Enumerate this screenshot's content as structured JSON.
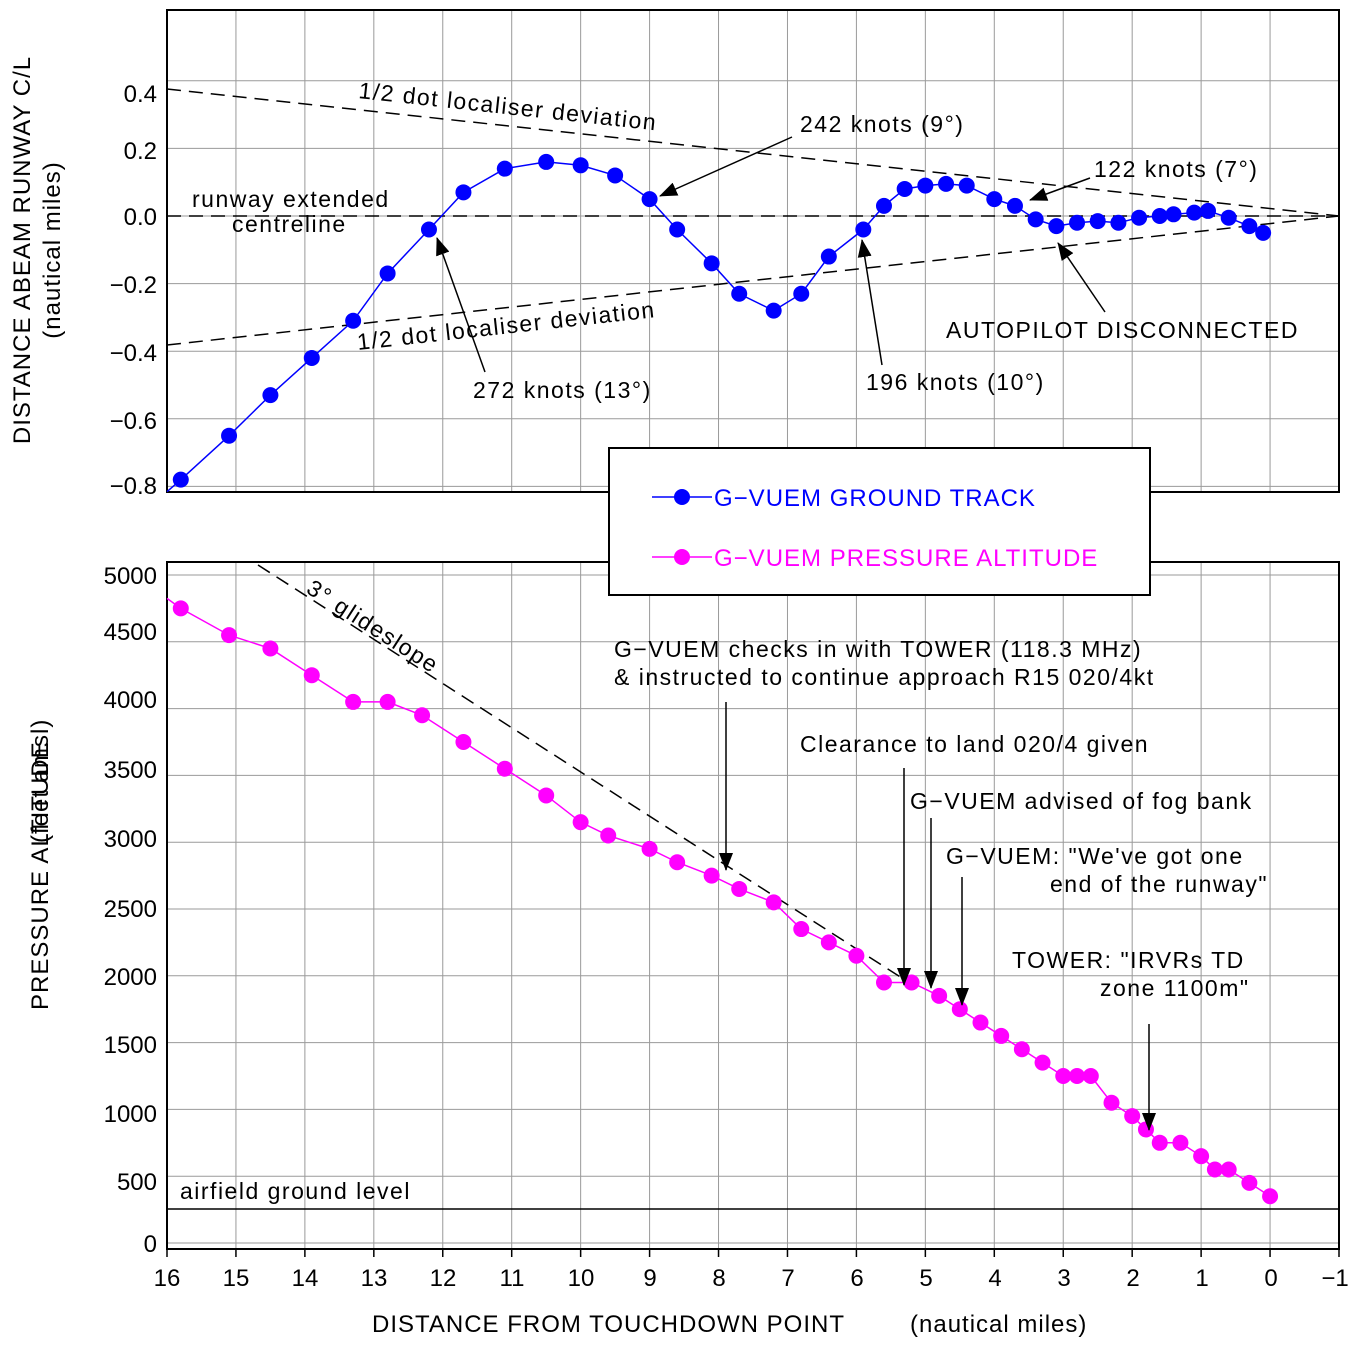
{
  "chart_data": [
    {
      "type": "line",
      "ylabel": "DISTANCE ABEAM RUNWAY C/L",
      "ylabel_sub": "(nautical miles)",
      "xlim": [
        16,
        -1
      ],
      "ylim": [
        -0.8,
        0.4
      ],
      "yticks": [
        "0.4",
        "0.2",
        "0.0",
        "−0.2",
        "−0.4",
        "−0.6",
        "−0.8"
      ],
      "grid": true,
      "series": [
        {
          "name": "G−VUEM GROUND TRACK",
          "color": "#0000ff",
          "x": [
            15.8,
            15.1,
            14.5,
            13.9,
            13.3,
            12.8,
            12.2,
            11.7,
            11.1,
            10.5,
            10.0,
            9.5,
            9.0,
            8.6,
            8.1,
            7.7,
            7.2,
            6.8,
            6.4,
            5.9,
            5.6,
            5.3,
            5.0,
            4.7,
            4.4,
            4.0,
            3.7,
            3.4,
            3.1,
            2.8,
            2.5,
            2.2,
            1.9,
            1.6,
            1.4,
            1.1,
            0.9,
            0.6,
            0.3,
            0.1
          ],
          "y": [
            -0.78,
            -0.65,
            -0.53,
            -0.42,
            -0.31,
            -0.17,
            -0.04,
            0.07,
            0.14,
            0.16,
            0.15,
            0.12,
            0.05,
            -0.04,
            -0.14,
            -0.23,
            -0.28,
            -0.23,
            -0.12,
            -0.04,
            0.03,
            0.08,
            0.09,
            0.095,
            0.09,
            0.05,
            0.03,
            -0.01,
            -0.03,
            -0.02,
            -0.015,
            -0.02,
            -0.005,
            0.0,
            0.005,
            0.01,
            0.015,
            -0.005,
            -0.03,
            -0.05
          ]
        }
      ],
      "guides": [
        {
          "label": "1/2 dot localiser deviation",
          "from": [
            16,
            0.4
          ],
          "to": [
            -1,
            0.0
          ]
        },
        {
          "label": "1/2 dot localiser deviation",
          "from": [
            16,
            -0.38
          ],
          "to": [
            -1,
            0.0
          ]
        },
        {
          "label": "runway extended centreline",
          "from": [
            16,
            0.0
          ],
          "to": [
            -1,
            0.0
          ]
        }
      ],
      "annotations": [
        {
          "text": "242 knots (9°)"
        },
        {
          "text": "122 knots (7°)"
        },
        {
          "text": "272 knots (13°)"
        },
        {
          "text": "196 knots (10°)"
        },
        {
          "text": "AUTOPILOT DISCONNECTED"
        }
      ],
      "legend_placement": "center-right",
      "legend": [
        "G−VUEM GROUND TRACK",
        "G−VUEM PRESSURE ALTITUDE"
      ]
    },
    {
      "type": "line",
      "ylabel": "PRESSURE ALTITUDE",
      "ylabel_sub": "(feet amsl)",
      "xlabel": "DISTANCE FROM TOUCHDOWN POINT",
      "xlabel_sub": "(nautical miles)",
      "xlim": [
        16,
        -1
      ],
      "ylim": [
        0,
        5000
      ],
      "xticks": [
        "16",
        "15",
        "14",
        "13",
        "12",
        "11",
        "10",
        "9",
        "8",
        "7",
        "6",
        "5",
        "4",
        "3",
        "2",
        "1",
        "0",
        "−1"
      ],
      "yticks": [
        "5000",
        "4500",
        "4000",
        "3500",
        "3000",
        "2500",
        "2000",
        "1500",
        "1000",
        "500",
        "0"
      ],
      "grid": true,
      "series": [
        {
          "name": "G−VUEM PRESSURE ALTITUDE",
          "color": "#ff00ff",
          "x": [
            15.8,
            15.1,
            14.5,
            13.9,
            13.3,
            12.8,
            12.3,
            11.7,
            11.1,
            10.5,
            10.0,
            9.6,
            9.0,
            8.6,
            8.1,
            7.7,
            7.2,
            6.8,
            6.4,
            6.0,
            5.6,
            5.2,
            4.8,
            4.5,
            4.2,
            3.9,
            3.6,
            3.3,
            3.0,
            2.8,
            2.6,
            2.3,
            2.0,
            1.8,
            1.6,
            1.3,
            1.0,
            0.8,
            0.6,
            0.3,
            0.0
          ],
          "y": [
            4750,
            4550,
            4450,
            4250,
            4050,
            4050,
            3950,
            3750,
            3550,
            3350,
            3150,
            3050,
            2950,
            2850,
            2750,
            2650,
            2550,
            2350,
            2250,
            2150,
            1950,
            1950,
            1850,
            1750,
            1650,
            1550,
            1450,
            1350,
            1250,
            1250,
            1250,
            1050,
            950,
            850,
            750,
            750,
            650,
            550,
            550,
            450,
            350
          ]
        }
      ],
      "guides": [
        {
          "label": "3° glideslope",
          "from": [
            14.6,
            5000
          ],
          "to": [
            5.2,
            1900
          ]
        },
        {
          "label": "airfield ground level",
          "y": 300
        }
      ],
      "annotations": [
        {
          "text": "G−VUEM checks in with TOWER (118.3 MHz)"
        },
        {
          "text": "& instructed to continue approach R15 020/4kt"
        },
        {
          "text": "Clearance to land 020/4 given"
        },
        {
          "text": "G−VUEM advised of fog bank"
        },
        {
          "text": "G−VUEM: \"We've got one"
        },
        {
          "text": "end of the runway\""
        },
        {
          "text": "TOWER: \"IRVRs TD"
        },
        {
          "text": "zone 1100m\""
        }
      ]
    }
  ]
}
